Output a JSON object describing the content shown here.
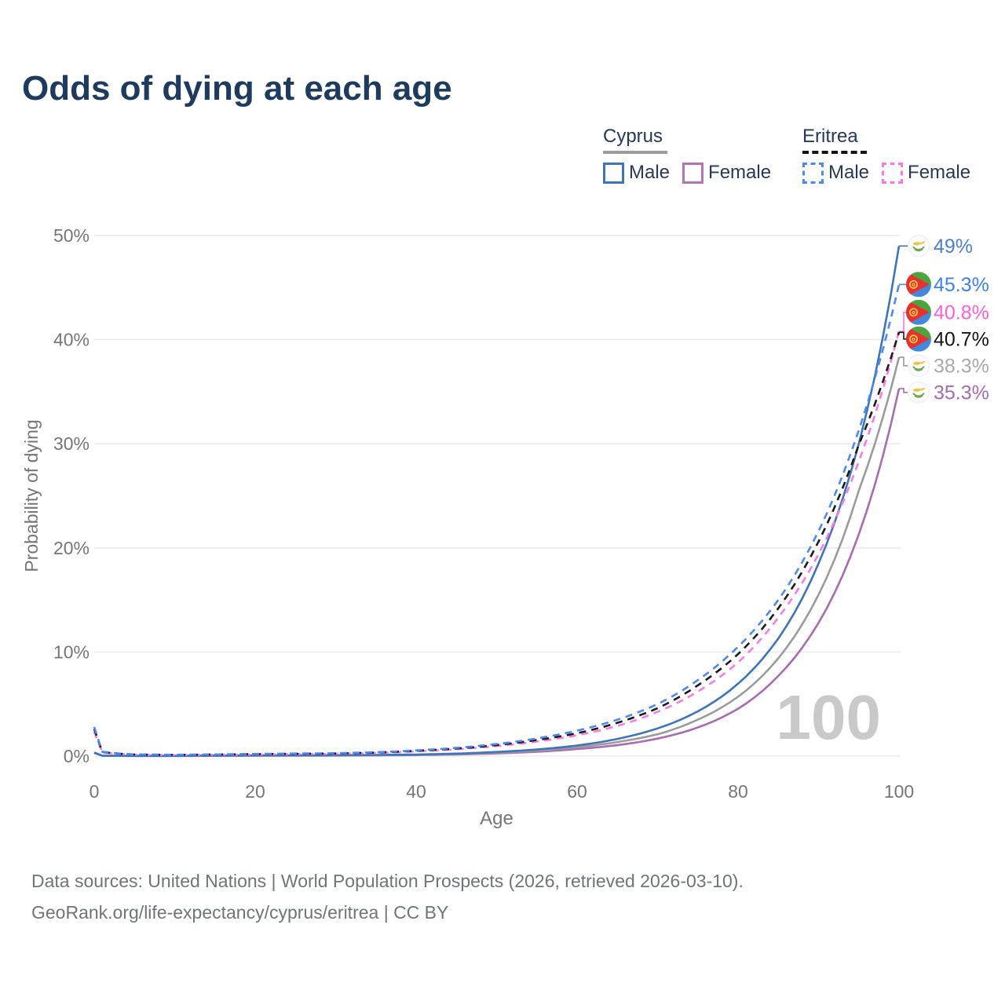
{
  "title": "Odds of dying at each age",
  "legend": {
    "groups": [
      {
        "country": "Cyprus",
        "style": "solid",
        "header_color": "#9b9b9b",
        "items": [
          {
            "label": "Male",
            "color": "#3d74bb"
          },
          {
            "label": "Female",
            "color": "#b273b8"
          }
        ]
      },
      {
        "country": "Eritrea",
        "style": "dashed",
        "header_color": "#141414",
        "items": [
          {
            "label": "Male",
            "color": "#4d89f2"
          },
          {
            "label": "Female",
            "color": "#f97ae6"
          }
        ]
      }
    ]
  },
  "watermark": "100",
  "footer": {
    "line1": "Data sources: United Nations | World Population Prospects (2026, retrieved 2026-03-10).",
    "line2": "GeoRank.org/life-expectancy/cyprus/eritrea | CC BY"
  },
  "chart_data": {
    "type": "line",
    "title": "Odds of dying at each age",
    "xlabel": "Age",
    "ylabel": "Probability of dying",
    "xlim": [
      0,
      100
    ],
    "ylim": [
      0,
      50
    ],
    "grid": true,
    "legend_position": "top-right",
    "x_ticks": [
      {
        "v": 0,
        "label": "0"
      },
      {
        "v": 20,
        "label": "20"
      },
      {
        "v": 40,
        "label": "40"
      },
      {
        "v": 60,
        "label": "60"
      },
      {
        "v": 80,
        "label": "80"
      },
      {
        "v": 100,
        "label": "100"
      }
    ],
    "y_ticks": [
      {
        "v": 0,
        "label": "0%"
      },
      {
        "v": 10,
        "label": "10%"
      },
      {
        "v": 20,
        "label": "20%"
      },
      {
        "v": 30,
        "label": "30%"
      },
      {
        "v": 40,
        "label": "40%"
      },
      {
        "v": 50,
        "label": "50%"
      }
    ],
    "x": [
      0,
      1,
      5,
      10,
      15,
      20,
      25,
      30,
      35,
      40,
      45,
      50,
      55,
      60,
      65,
      70,
      75,
      80,
      85,
      90,
      95,
      100
    ],
    "series": [
      {
        "name": "cyprus-female",
        "country": "cyprus",
        "sex": "female",
        "color": "#a96bb1",
        "dash": false,
        "end_label": "35.3%",
        "label_color": "#a46bb0",
        "values": [
          0.3,
          0.03,
          0.015,
          0.015,
          0.025,
          0.03,
          0.035,
          0.05,
          0.07,
          0.1,
          0.16,
          0.26,
          0.42,
          0.68,
          1.05,
          1.68,
          2.75,
          4.55,
          7.7,
          12.8,
          21.3,
          35.3
        ]
      },
      {
        "name": "cyprus-both-sexes",
        "country": "cyprus",
        "sex": "both",
        "color": "#9b9b9b",
        "dash": false,
        "end_label": "38.3%",
        "label_color": "#a9a9a9",
        "values": [
          0.32,
          0.035,
          0.018,
          0.018,
          0.04,
          0.05,
          0.06,
          0.07,
          0.09,
          0.13,
          0.2,
          0.33,
          0.53,
          0.85,
          1.35,
          2.1,
          3.5,
          5.7,
          9.4,
          15.5,
          25.5,
          38.3
        ]
      },
      {
        "name": "cyprus-male",
        "country": "cyprus",
        "sex": "male",
        "color": "#3d74bb",
        "dash": false,
        "end_label": "49%",
        "label_color": "#4a80c9",
        "values": [
          0.35,
          0.04,
          0.02,
          0.02,
          0.05,
          0.07,
          0.08,
          0.09,
          0.11,
          0.15,
          0.24,
          0.4,
          0.64,
          1.02,
          1.65,
          2.66,
          4.3,
          6.95,
          11.3,
          18.5,
          30.0,
          49.0
        ]
      },
      {
        "name": "eritrea-female",
        "country": "eritrea",
        "sex": "female",
        "color": "#f97ae6",
        "dash": true,
        "end_label": "40.8%",
        "label_color": "#fb5fdd",
        "values": [
          2.35,
          0.36,
          0.14,
          0.11,
          0.13,
          0.16,
          0.19,
          0.22,
          0.3,
          0.46,
          0.66,
          0.96,
          1.4,
          2.0,
          2.9,
          4.25,
          6.2,
          9.0,
          13.3,
          19.4,
          28.3,
          40.8
        ]
      },
      {
        "name": "eritrea-both-sexes",
        "country": "eritrea",
        "sex": "both",
        "color": "#1b1b1b",
        "dash": true,
        "end_label": "40.7%",
        "label_color": "#141414",
        "values": [
          2.6,
          0.39,
          0.15,
          0.12,
          0.15,
          0.19,
          0.22,
          0.25,
          0.34,
          0.51,
          0.73,
          1.06,
          1.55,
          2.2,
          3.2,
          4.6,
          6.8,
          9.8,
          14.2,
          20.6,
          29.9,
          40.7
        ]
      },
      {
        "name": "eritrea-male",
        "country": "eritrea",
        "sex": "male",
        "color": "#4d89f2",
        "dash": true,
        "end_label": "45.3%",
        "label_color": "#3c82f2",
        "values": [
          2.8,
          0.42,
          0.16,
          0.13,
          0.16,
          0.21,
          0.25,
          0.28,
          0.37,
          0.55,
          0.8,
          1.16,
          1.7,
          2.45,
          3.5,
          5.0,
          7.3,
          10.5,
          15.0,
          21.6,
          31.3,
          45.3
        ]
      }
    ]
  }
}
